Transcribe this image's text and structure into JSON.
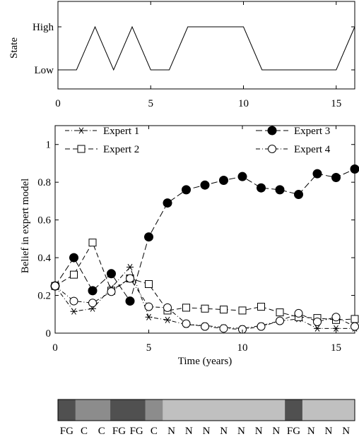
{
  "chart_data": [
    {
      "type": "line",
      "ylabel": "State",
      "xlim": [
        0,
        16
      ],
      "xticks": [
        0,
        5,
        10,
        15
      ],
      "yticks": [
        "Low",
        "High"
      ],
      "grid": false,
      "x": [
        0,
        1,
        2,
        3,
        4,
        5,
        6,
        7,
        8,
        9,
        10,
        11,
        12,
        13,
        14,
        15,
        16
      ],
      "series": [
        {
          "values": [
            "Low",
            "Low",
            "High",
            "Low",
            "High",
            "Low",
            "Low",
            "High",
            "High",
            "High",
            "High",
            "Low",
            "Low",
            "Low",
            "Low",
            "Low",
            "High"
          ]
        }
      ]
    },
    {
      "type": "line",
      "xlabel": "Time (years)",
      "ylabel": "Belief in expert model",
      "xlim": [
        0,
        16
      ],
      "ylim": [
        0,
        1.1
      ],
      "xticks": [
        0,
        5,
        10,
        15
      ],
      "yticks": [
        0,
        0.2,
        0.4,
        0.6,
        0.8,
        1
      ],
      "grid": false,
      "legend": "top",
      "x": [
        0,
        1,
        2,
        3,
        4,
        5,
        6,
        7,
        8,
        9,
        10,
        11,
        12,
        13,
        14,
        15,
        16
      ],
      "series": [
        {
          "name": "Expert 1",
          "marker": "asterisk",
          "dash": "6,3,1,3",
          "values": [
            0.25,
            0.115,
            0.13,
            0.24,
            0.35,
            0.085,
            0.07,
            0.045,
            0.04,
            0.03,
            0.025,
            0.04,
            0.065,
            0.075,
            0.025,
            0.025,
            0.025
          ]
        },
        {
          "name": "Expert 2",
          "marker": "square",
          "dash": "7,4",
          "values": [
            0.25,
            0.31,
            0.48,
            0.225,
            0.29,
            0.26,
            0.12,
            0.135,
            0.13,
            0.125,
            0.12,
            0.14,
            0.11,
            0.085,
            0.08,
            0.07,
            0.075
          ]
        },
        {
          "name": "Expert 3",
          "marker": "filled-circle",
          "dash": "9,4",
          "values": [
            0.25,
            0.4,
            0.225,
            0.315,
            0.17,
            0.51,
            0.69,
            0.76,
            0.785,
            0.81,
            0.83,
            0.77,
            0.76,
            0.735,
            0.845,
            0.825,
            0.87
          ]
        },
        {
          "name": "Expert 4",
          "marker": "open-circle",
          "dash": "6,3,1,3",
          "values": [
            0.25,
            0.17,
            0.16,
            0.22,
            0.29,
            0.14,
            0.135,
            0.05,
            0.035,
            0.025,
            0.02,
            0.035,
            0.065,
            0.105,
            0.06,
            0.085,
            0.035
          ]
        }
      ]
    },
    {
      "type": "heatmap",
      "colors": {
        "FG": "#505050",
        "C": "#8c8c8c",
        "N": "#c0c0c0"
      },
      "cells": [
        "FG",
        "C",
        "C",
        "FG",
        "FG",
        "C",
        "N",
        "N",
        "N",
        "N",
        "N",
        "N",
        "N",
        "FG",
        "N",
        "N",
        "N"
      ],
      "labels": [
        "FG",
        "C",
        "C",
        "FG",
        "FG",
        "C",
        "N",
        "N",
        "N",
        "N",
        "N",
        "N",
        "N",
        "FG",
        "N",
        "N",
        "N"
      ]
    }
  ]
}
